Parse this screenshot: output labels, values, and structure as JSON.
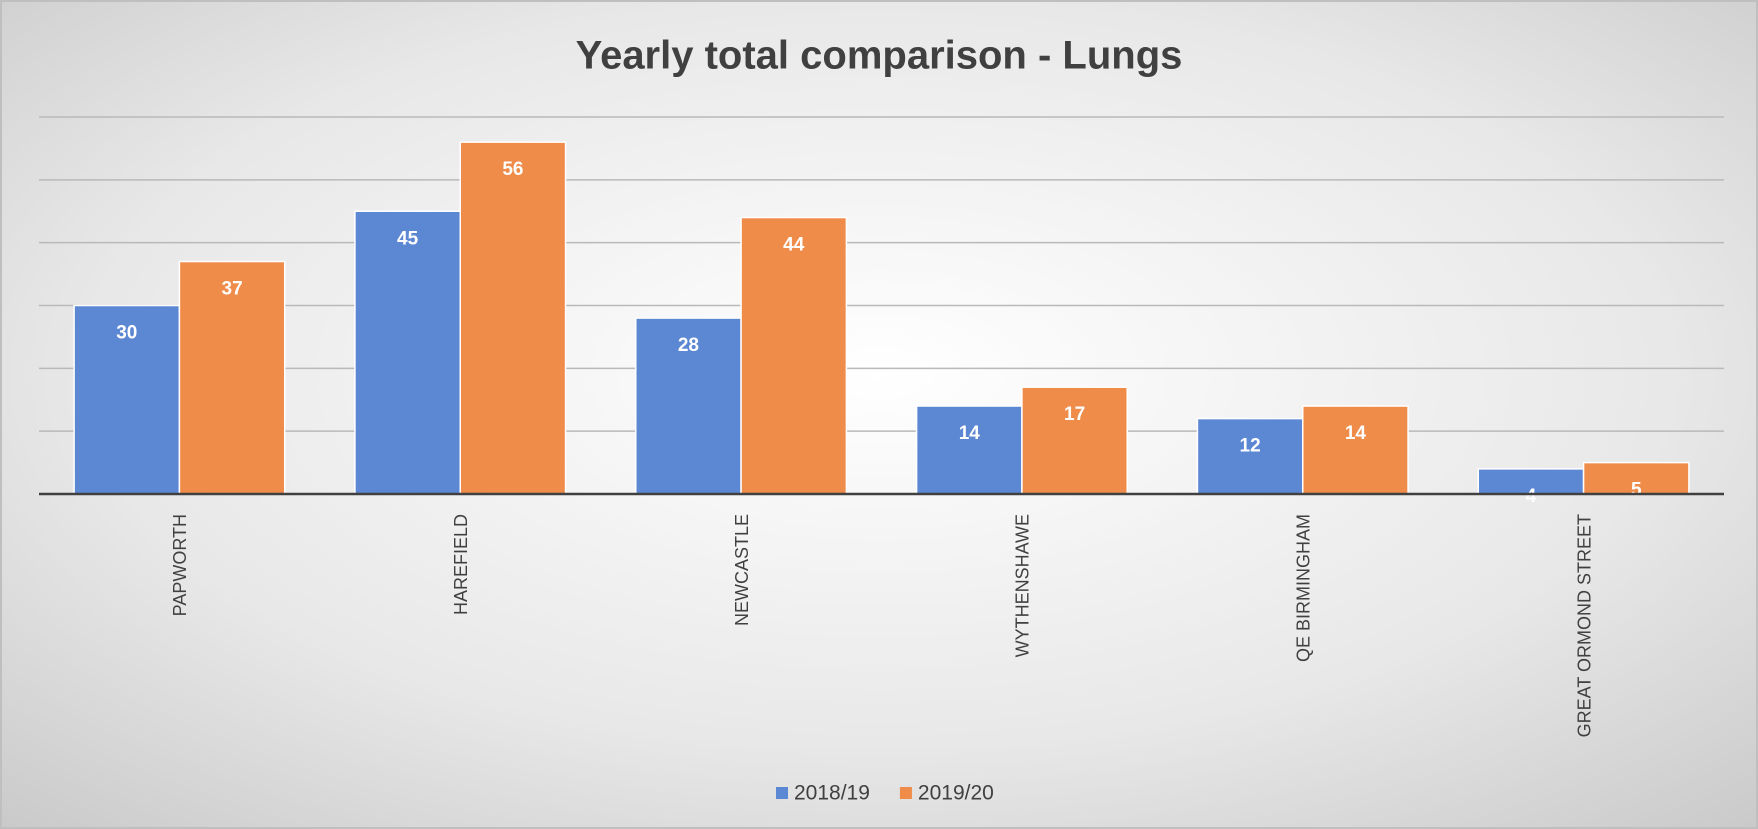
{
  "chart_data": {
    "type": "bar",
    "title": "Yearly total comparison - Lungs",
    "categories": [
      "PAPWORTH",
      "HAREFIELD",
      "NEWCASTLE",
      "WYTHENSHAWE",
      "QE BIRMINGHAM",
      "GREAT ORMOND STREET"
    ],
    "series": [
      {
        "name": "2018/19",
        "color": "#5b87d3",
        "values": [
          30,
          45,
          28,
          14,
          12,
          4
        ]
      },
      {
        "name": "2019/20",
        "color": "#ef8c4a",
        "values": [
          37,
          56,
          44,
          17,
          14,
          5
        ]
      }
    ],
    "ylim": [
      0,
      60
    ],
    "yticks": [
      0,
      10,
      20,
      30,
      40,
      50,
      60
    ],
    "grid": true,
    "legend": "bottom"
  }
}
